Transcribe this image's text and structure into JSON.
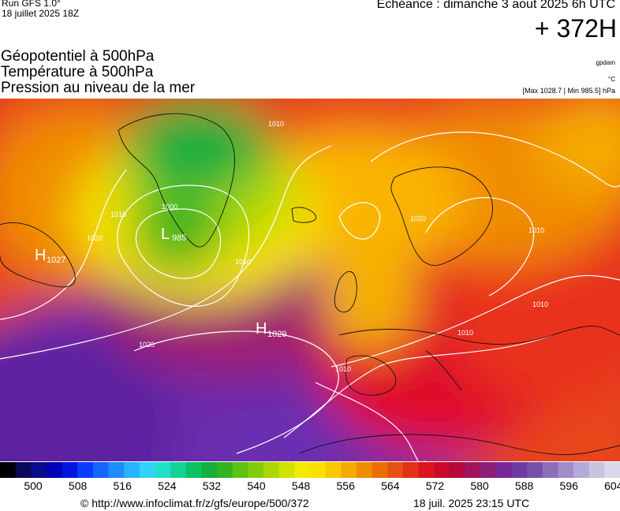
{
  "run": {
    "line1": "Run GFS 1.0°",
    "line2": "18 juillet 2025 18Z"
  },
  "echeance": "Echéance : dimanche 3 aout 2025 6h UTC",
  "hour": "+ 372H",
  "titles": [
    "Géopotentiel à 500hPa",
    "Température à 500hPa",
    "Pression au niveau de la mer"
  ],
  "units": {
    "gpdam": "gpdam",
    "temp": "°C",
    "range": "[Max 1028.7 | Min 985.5] hPa"
  },
  "pressure_centers": [
    {
      "type": "H",
      "value": "1027"
    },
    {
      "type": "L",
      "value": "985"
    },
    {
      "type": "H",
      "value": "1029"
    }
  ],
  "isobar_labels": [
    "1020",
    "1010",
    "1000",
    "1010",
    "1020",
    "1010",
    "1020",
    "1010",
    "1010",
    "1010",
    "1010"
  ],
  "colors": {
    "deep": "#5a1ba0",
    "purple": "#6b2fb0",
    "red": "#e0102a",
    "orange": "#f26a10",
    "yellow": "#f5e000",
    "green": "#1aa53a",
    "contour": "#ffffff",
    "coast": "#111111"
  },
  "scale": {
    "colors": [
      "#000000",
      "#0a0a5a",
      "#080c8c",
      "#0000b4",
      "#0014dc",
      "#0a3cff",
      "#1464ff",
      "#1e8cff",
      "#28b4ff",
      "#32d2fa",
      "#1ee1c8",
      "#14d296",
      "#0ac364",
      "#14af3c",
      "#32b41e",
      "#5ac314",
      "#82cd0a",
      "#aad700",
      "#d2e100",
      "#f0eb00",
      "#fae100",
      "#fac800",
      "#f5aa00",
      "#f08c00",
      "#eb6e00",
      "#e65014",
      "#e13214",
      "#dc141e",
      "#c80a28",
      "#b40a3c",
      "#a0145a",
      "#8c1e78",
      "#782896",
      "#6e3ca0",
      "#7850aa",
      "#8c6eb9",
      "#a08cc8",
      "#b4aad7",
      "#c8c3e1",
      "#dcd7eb"
    ],
    "ticks": [
      "500",
      "508",
      "516",
      "524",
      "532",
      "540",
      "548",
      "556",
      "564",
      "572",
      "580",
      "588",
      "596",
      "604"
    ]
  },
  "footer": {
    "url": "© http://www.infoclimat.fr/z/gfs/europe/500/372",
    "date": "18 juil. 2025 23:15 UTC"
  }
}
